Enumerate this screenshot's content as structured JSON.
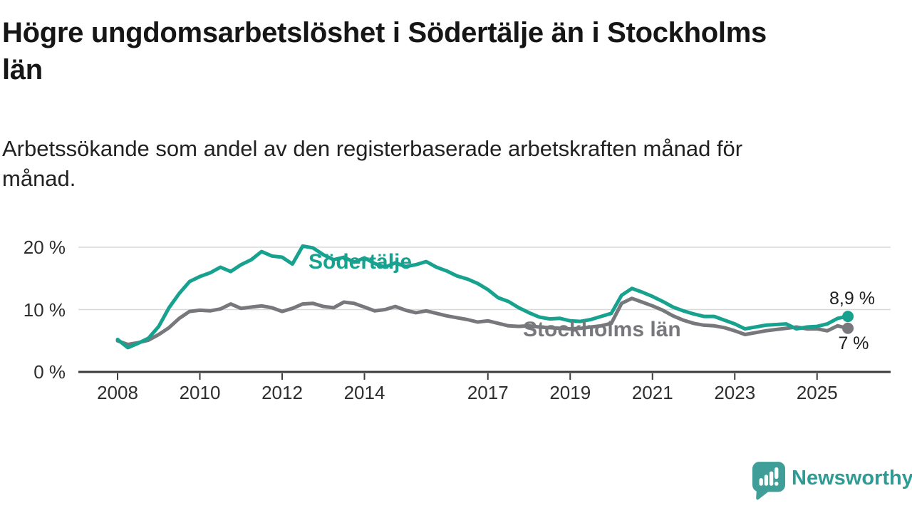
{
  "header": {
    "title_lines": [
      "Högre ungdomsarbetslöshet i Södertälje än i Stockholms",
      "län"
    ],
    "subtitle_lines": [
      "Arbetssökande som andel av den registerbaserade arbetskraften månad för",
      "månad."
    ]
  },
  "chart_data": {
    "type": "line",
    "xlabel": "",
    "ylabel": "",
    "ylim": [
      0,
      22
    ],
    "xlim": [
      2007.9,
      2026.4
    ],
    "grid": "horizontal",
    "legend_position": "inline-labels",
    "x_years": [
      2008,
      2008.25,
      2008.5,
      2008.75,
      2009,
      2009.25,
      2009.5,
      2009.75,
      2010,
      2010.25,
      2010.5,
      2010.75,
      2011,
      2011.25,
      2011.5,
      2011.75,
      2012,
      2012.25,
      2012.5,
      2012.75,
      2013,
      2013.25,
      2013.5,
      2013.75,
      2014,
      2014.25,
      2014.5,
      2014.75,
      2015,
      2015.25,
      2015.5,
      2015.75,
      2016,
      2016.25,
      2016.5,
      2016.75,
      2017,
      2017.25,
      2017.5,
      2017.75,
      2018,
      2018.25,
      2018.5,
      2018.75,
      2019,
      2019.25,
      2019.5,
      2019.75,
      2020,
      2020.25,
      2020.5,
      2020.75,
      2021,
      2021.25,
      2021.5,
      2021.75,
      2022,
      2022.25,
      2022.5,
      2022.75,
      2023,
      2023.25,
      2023.5,
      2023.75,
      2024,
      2024.25,
      2024.5,
      2024.75,
      2025,
      2025.25,
      2025.5,
      2025.75
    ],
    "series": [
      {
        "name": "Södertälje",
        "color": "#16a28f",
        "end_label": "8,9 %",
        "end_value": 8.9,
        "values": [
          5.2,
          3.9,
          4.6,
          5.4,
          7.3,
          10.3,
          12.6,
          14.5,
          15.3,
          15.9,
          16.8,
          16.1,
          17.2,
          18.0,
          19.3,
          18.6,
          18.4,
          17.3,
          20.2,
          19.9,
          18.8,
          18.0,
          18.4,
          17.6,
          18.3,
          17.4,
          16.8,
          17.5,
          16.9,
          17.2,
          17.7,
          16.8,
          16.2,
          15.4,
          14.9,
          14.2,
          13.2,
          11.9,
          11.3,
          10.3,
          9.5,
          8.8,
          8.5,
          8.6,
          8.2,
          8.1,
          8.4,
          8.9,
          9.4,
          12.3,
          13.4,
          12.8,
          12.1,
          11.3,
          10.4,
          9.8,
          9.3,
          8.9,
          8.9,
          8.3,
          7.7,
          6.9,
          7.2,
          7.5,
          7.6,
          7.7,
          6.9,
          7.2,
          7.3,
          7.7,
          8.6,
          8.9
        ]
      },
      {
        "name": "Stockholms län",
        "color": "#77787b",
        "end_label": "7 %",
        "end_value": 7.0,
        "values": [
          5.0,
          4.4,
          4.7,
          5.1,
          6.0,
          7.1,
          8.6,
          9.7,
          9.9,
          9.8,
          10.1,
          10.9,
          10.2,
          10.4,
          10.6,
          10.3,
          9.7,
          10.2,
          10.9,
          11.0,
          10.5,
          10.3,
          11.2,
          11.0,
          10.4,
          9.8,
          10.0,
          10.5,
          9.9,
          9.5,
          9.8,
          9.4,
          9.0,
          8.7,
          8.4,
          8.0,
          8.2,
          7.8,
          7.4,
          7.3,
          7.4,
          7.2,
          7.1,
          7.0,
          6.9,
          7.0,
          7.2,
          7.4,
          7.8,
          11.0,
          11.8,
          11.2,
          10.6,
          9.9,
          9.0,
          8.3,
          7.8,
          7.5,
          7.4,
          7.1,
          6.6,
          6.0,
          6.3,
          6.6,
          6.8,
          7.0,
          7.2,
          6.9,
          6.9,
          6.6,
          7.4,
          7.0
        ]
      }
    ],
    "yticks": [
      {
        "value": 0,
        "label": "0 %"
      },
      {
        "value": 10,
        "label": "10 %"
      },
      {
        "value": 20,
        "label": "20 %"
      }
    ],
    "xticks": [
      {
        "year": 2008,
        "label": "2008"
      },
      {
        "year": 2010,
        "label": "2010"
      },
      {
        "year": 2012,
        "label": "2012"
      },
      {
        "year": 2014,
        "label": "2014"
      },
      {
        "year": 2017,
        "label": "2017"
      },
      {
        "year": 2019,
        "label": "2019"
      },
      {
        "year": 2021,
        "label": "2021"
      },
      {
        "year": 2023,
        "label": "2023"
      },
      {
        "year": 2025,
        "label": "2025"
      }
    ],
    "colors": {
      "grid": "#d8d8d8",
      "axis": "#3b3b3b"
    }
  },
  "footer": {
    "brand": "Newsworthy",
    "brand_color": "#2e9b94",
    "icon_color": "#3f9e97"
  }
}
